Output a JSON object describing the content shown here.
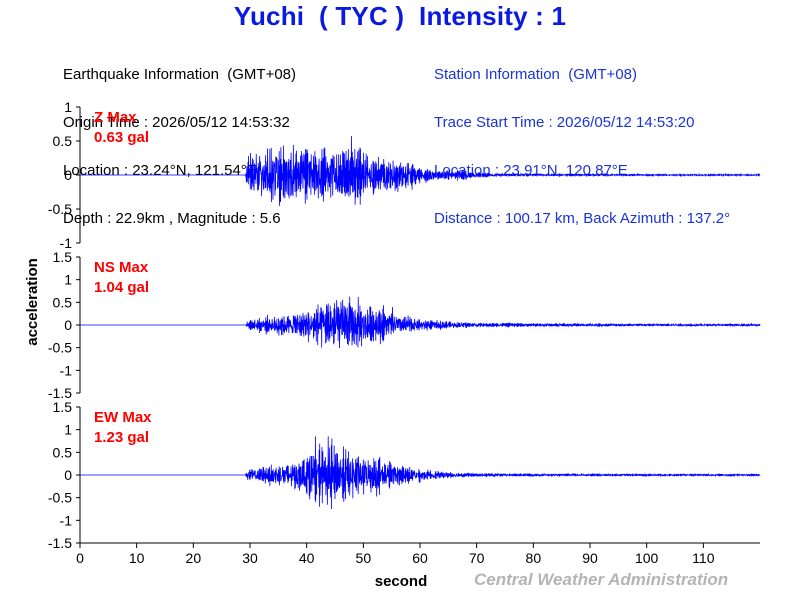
{
  "title": "Yuchi  ( TYC )  Intensity : 1",
  "earthquake": {
    "heading": "Earthquake Information  (GMT+08)",
    "origin_time": "Origin Time : 2026/05/12 14:53:32",
    "location": "Location : 23.24°N, 121.54°E",
    "depth_magnitude": "Depth : 22.9km , Magnitude : 5.6"
  },
  "station": {
    "heading": "Station Information  (GMT+08)",
    "trace_start": "Trace Start Time : 2026/05/12 14:53:20",
    "location": "Location : 23.91°N, 120.87°E",
    "distance": "Distance : 100.17 km, Back Azimuth : 137.2°"
  },
  "credit": "Central Weather Administration",
  "colors": {
    "title": "#0a1adf",
    "station_text": "#1a34d6",
    "trace": "#0000ff",
    "max_label": "#ff0000",
    "axis": "#000000",
    "credit": "#b4b4b4"
  },
  "chart_data": {
    "type": "line",
    "xlabel": "second",
    "ylabel": "acceleration",
    "xlim": [
      0,
      120
    ],
    "x_ticks": [
      0,
      10,
      20,
      30,
      40,
      50,
      60,
      70,
      80,
      90,
      100,
      110
    ],
    "grid": false,
    "panels": [
      {
        "name": "Z",
        "max_label": "Z Max",
        "max_value": "0.63 gal",
        "peak": 0.63,
        "ylim": [
          -1,
          1
        ],
        "y_ticks": [
          1,
          0.5,
          0,
          -0.5,
          -1
        ],
        "y_tick_labels": [
          "1",
          "0.5",
          "0",
          "-0.5",
          "-1"
        ],
        "envelope": [
          [
            0,
            0.0
          ],
          [
            29.2,
            0.0
          ],
          [
            29.5,
            0.35
          ],
          [
            31,
            0.45
          ],
          [
            34,
            0.5
          ],
          [
            36,
            0.55
          ],
          [
            38,
            0.52
          ],
          [
            41,
            0.48
          ],
          [
            44,
            0.55
          ],
          [
            46,
            0.5
          ],
          [
            48,
            0.6
          ],
          [
            50,
            0.4
          ],
          [
            53,
            0.32
          ],
          [
            56,
            0.28
          ],
          [
            60,
            0.16
          ],
          [
            63,
            0.1
          ],
          [
            67,
            0.09
          ],
          [
            70,
            0.05
          ],
          [
            75,
            0.025
          ],
          [
            85,
            0.018
          ],
          [
            95,
            0.015
          ],
          [
            105,
            0.013
          ],
          [
            120,
            0.012
          ]
        ]
      },
      {
        "name": "NS",
        "max_label": "NS Max",
        "max_value": "1.04 gal",
        "peak": 1.04,
        "ylim": [
          -1.5,
          1.5
        ],
        "y_ticks": [
          1.5,
          1,
          0.5,
          0,
          -0.5,
          -1,
          -1.5
        ],
        "y_tick_labels": [
          "1.5",
          "1",
          "0.5",
          "0",
          "-0.5",
          "-1",
          "-1.5"
        ],
        "envelope": [
          [
            0,
            0.0
          ],
          [
            29.2,
            0.0
          ],
          [
            29.5,
            0.12
          ],
          [
            32,
            0.2
          ],
          [
            35,
            0.3
          ],
          [
            38,
            0.35
          ],
          [
            40,
            0.4
          ],
          [
            42,
            0.55
          ],
          [
            44,
            0.7
          ],
          [
            46,
            0.8
          ],
          [
            48,
            0.75
          ],
          [
            50,
            0.55
          ],
          [
            52,
            0.5
          ],
          [
            54,
            0.45
          ],
          [
            57,
            0.25
          ],
          [
            60,
            0.15
          ],
          [
            65,
            0.1
          ],
          [
            70,
            0.06
          ],
          [
            80,
            0.045
          ],
          [
            90,
            0.04
          ],
          [
            100,
            0.035
          ],
          [
            120,
            0.03
          ]
        ]
      },
      {
        "name": "EW",
        "max_label": "EW Max",
        "max_value": "1.23 gal",
        "peak": 1.23,
        "ylim": [
          -1.5,
          1.5
        ],
        "y_ticks": [
          1.5,
          1,
          0.5,
          0,
          -0.5,
          -1,
          -1.5
        ],
        "y_tick_labels": [
          "1.5",
          "1",
          "0.5",
          "0",
          "-0.5",
          "-1",
          "-1.5"
        ],
        "envelope": [
          [
            0,
            0.0
          ],
          [
            29.2,
            0.0
          ],
          [
            29.5,
            0.15
          ],
          [
            32,
            0.22
          ],
          [
            35,
            0.3
          ],
          [
            38,
            0.4
          ],
          [
            41,
            0.65
          ],
          [
            43,
            0.85
          ],
          [
            45,
            0.8
          ],
          [
            47,
            0.7
          ],
          [
            50,
            0.55
          ],
          [
            53,
            0.45
          ],
          [
            55,
            0.35
          ],
          [
            58,
            0.22
          ],
          [
            62,
            0.12
          ],
          [
            66,
            0.08
          ],
          [
            70,
            0.05
          ],
          [
            80,
            0.035
          ],
          [
            90,
            0.03
          ],
          [
            100,
            0.028
          ],
          [
            120,
            0.025
          ]
        ]
      }
    ]
  }
}
